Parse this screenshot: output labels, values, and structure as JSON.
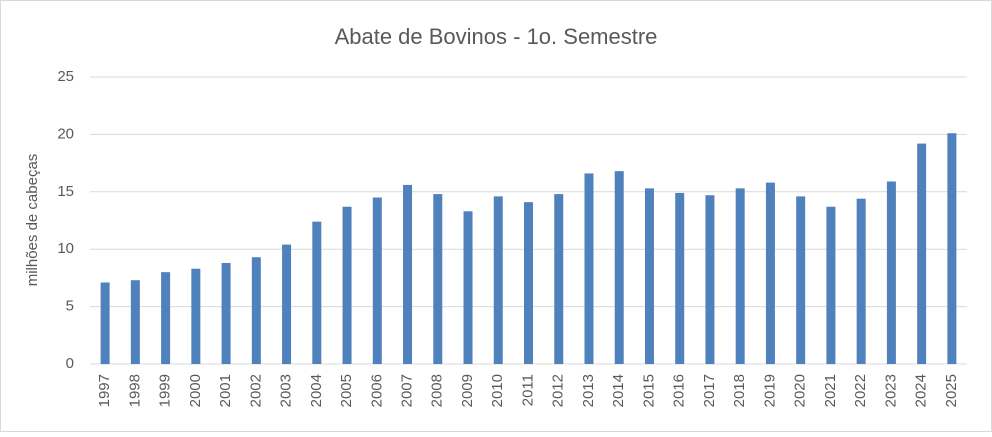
{
  "chart_data": {
    "type": "bar",
    "title": "Abate de Bovinos - 1o. Semestre",
    "y_label": "milhões de cabeças",
    "categories": [
      "1997",
      "1998",
      "1999",
      "2000",
      "2001",
      "2002",
      "2003",
      "2004",
      "2005",
      "2006",
      "2007",
      "2008",
      "2009",
      "2010",
      "2011",
      "2012",
      "2013",
      "2014",
      "2015",
      "2016",
      "2017",
      "2018",
      "2019",
      "2020",
      "2021",
      "2022",
      "2023",
      "2024",
      "2025"
    ],
    "values": [
      7.1,
      7.3,
      8.0,
      8.3,
      8.8,
      9.3,
      10.4,
      12.4,
      13.7,
      14.5,
      15.6,
      14.8,
      13.3,
      14.6,
      14.1,
      14.8,
      16.6,
      16.8,
      15.3,
      14.9,
      14.7,
      15.3,
      15.8,
      14.6,
      13.7,
      14.4,
      15.9,
      19.2,
      20.1
    ],
    "color": "#4f81bd",
    "ylim": [
      0,
      25
    ],
    "yticks": [
      0,
      5,
      10,
      15,
      20,
      25
    ],
    "grid": true
  }
}
